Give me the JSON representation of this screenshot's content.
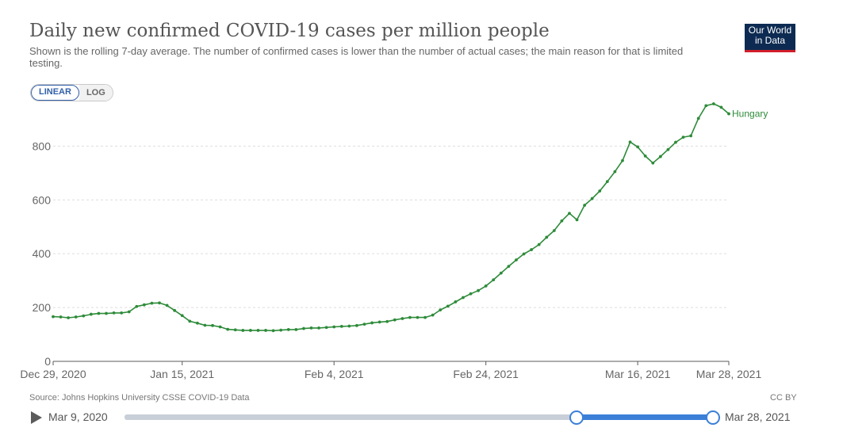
{
  "header": {
    "title": "Daily new confirmed COVID-19 cases per million people",
    "subtitle": "Shown is the rolling 7-day average. The number of confirmed cases is lower than the number of actual cases; the main reason for that is limited testing.",
    "logo_line1": "Our World",
    "logo_line2": "in Data"
  },
  "scale_toggle": {
    "linear": "LINEAR",
    "log": "LOG",
    "selected": "LINEAR"
  },
  "footer": {
    "source": "Source: Johns Hopkins University CSSE COVID-19 Data",
    "license": "CC BY"
  },
  "timeline": {
    "start": "Mar 9, 2020",
    "end": "Mar 28, 2021"
  },
  "colors": {
    "series": "#2e8b3a",
    "grid": "#dddddd",
    "axis": "#5b5b5b",
    "slider": "#3b7fd8"
  },
  "chart_data": {
    "type": "line",
    "title": "Daily new confirmed COVID-19 cases per million people",
    "ylim": [
      0,
      960
    ],
    "yticks": [
      0,
      200,
      400,
      600,
      800
    ],
    "xtick_labels": [
      "Dec 29, 2020",
      "Jan 15, 2021",
      "Feb 4, 2021",
      "Feb 24, 2021",
      "Mar 16, 2021",
      "Mar 28, 2021"
    ],
    "xtick_days": [
      0,
      17,
      37,
      57,
      77,
      89
    ],
    "x_start": "Dec 29, 2020",
    "series": [
      {
        "name": "Hungary",
        "values": [
          166,
          165,
          162,
          165,
          169,
          175,
          178,
          178,
          180,
          180,
          184,
          204,
          210,
          216,
          217,
          208,
          189,
          170,
          149,
          142,
          134,
          133,
          128,
          119,
          117,
          115,
          115,
          115,
          115,
          114,
          116,
          118,
          118,
          122,
          124,
          124,
          126,
          128,
          130,
          131,
          133,
          138,
          143,
          146,
          148,
          154,
          159,
          163,
          163,
          163,
          172,
          191,
          205,
          221,
          237,
          251,
          263,
          280,
          303,
          328,
          353,
          377,
          399,
          415,
          434,
          461,
          486,
          522,
          550,
          526,
          580,
          605,
          633,
          668,
          705,
          746,
          815,
          797,
          763,
          737,
          761,
          787,
          814,
          833,
          838,
          903,
          950,
          957,
          944,
          920
        ]
      }
    ]
  }
}
